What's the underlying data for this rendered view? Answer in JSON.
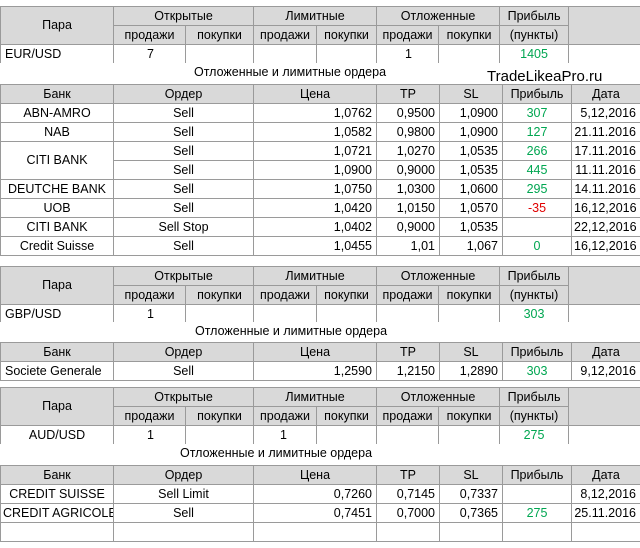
{
  "site": "TradeLikeaPro.ru",
  "headers": {
    "pair": "Пара",
    "open": "Открытые",
    "limit": "Лимитные",
    "pending": "Отложенные",
    "profit": "Прибыль",
    "sell": "продажи",
    "buy": "покупки",
    "points": "(пункты)",
    "bank": "Банк",
    "order": "Ордер",
    "price": "Цена",
    "tp": "TP",
    "sl": "SL",
    "date": "Дата",
    "section_title": "Отложенные и лимитные ордера"
  },
  "eurusd": {
    "pair": "EUR/USD",
    "open_sell": "7",
    "open_buy": "",
    "limit_sell": "",
    "limit_buy": "",
    "pending_sell": "1",
    "pending_buy": "",
    "profit": "1405",
    "orders": [
      {
        "bank": "ABN-AMRO",
        "order": "Sell",
        "price": "1,0762",
        "tp": "0,9500",
        "sl": "1,0900",
        "profit": "307",
        "date": "5,12,2016"
      },
      {
        "bank": "NAB",
        "order": "Sell",
        "price": "1,0582",
        "tp": "0,9800",
        "sl": "1,0900",
        "profit": "127",
        "date": "21.11.2016"
      },
      {
        "bank": "CITI BANK",
        "order": "Sell",
        "price": "1,0721",
        "tp": "1,0270",
        "sl": "1,0535",
        "profit": "266",
        "date": "17.11.2016"
      },
      {
        "bank": "",
        "order": "Sell",
        "price": "1,0900",
        "tp": "0,9000",
        "sl": "1,0535",
        "profit": "445",
        "date": "11.11.2016"
      },
      {
        "bank": "DEUTCHE BANK",
        "order": "Sell",
        "price": "1,0750",
        "tp": "1,0300",
        "sl": "1,0600",
        "profit": "295",
        "date": "14.11.2016"
      },
      {
        "bank": "UOB",
        "order": "Sell",
        "price": "1,0420",
        "tp": "1,0150",
        "sl": "1,0570",
        "profit": "-35",
        "date": "16,12,2016"
      },
      {
        "bank": "CITI BANK",
        "order": "Sell Stop",
        "price": "1,0402",
        "tp": "0,9000",
        "sl": "1,0535",
        "profit": "",
        "date": "22,12,2016"
      },
      {
        "bank": "Credit Suisse",
        "order": "Sell",
        "price": "1,0455",
        "tp": "1,01",
        "sl": "1,067",
        "profit": "0",
        "date": "16,12,2016"
      }
    ]
  },
  "gbpusd": {
    "pair": "GBP/USD",
    "open_sell": "1",
    "open_buy": "",
    "limit_sell": "",
    "limit_buy": "",
    "pending_sell": "",
    "pending_buy": "",
    "profit": "303",
    "orders": [
      {
        "bank": "Societe Generale",
        "order": "Sell",
        "price": "1,2590",
        "tp": "1,2150",
        "sl": "1,2890",
        "profit": "303",
        "date": "9,12,2016"
      }
    ]
  },
  "audusd": {
    "pair": "AUD/USD",
    "open_sell": "1",
    "open_buy": "",
    "limit_sell": "1",
    "limit_buy": "",
    "pending_sell": "",
    "pending_buy": "",
    "profit": "275",
    "orders": [
      {
        "bank": "CREDIT SUISSE",
        "order": "Sell Limit",
        "price": "0,7260",
        "tp": "0,7145",
        "sl": "0,7337",
        "profit": "",
        "date": "8,12,2016"
      },
      {
        "bank": "CREDIT AGRICOLE",
        "order": "Sell",
        "price": "0,7451",
        "tp": "0,7000",
        "sl": "0,7365",
        "profit": "275",
        "date": "25.11.2016"
      }
    ]
  }
}
